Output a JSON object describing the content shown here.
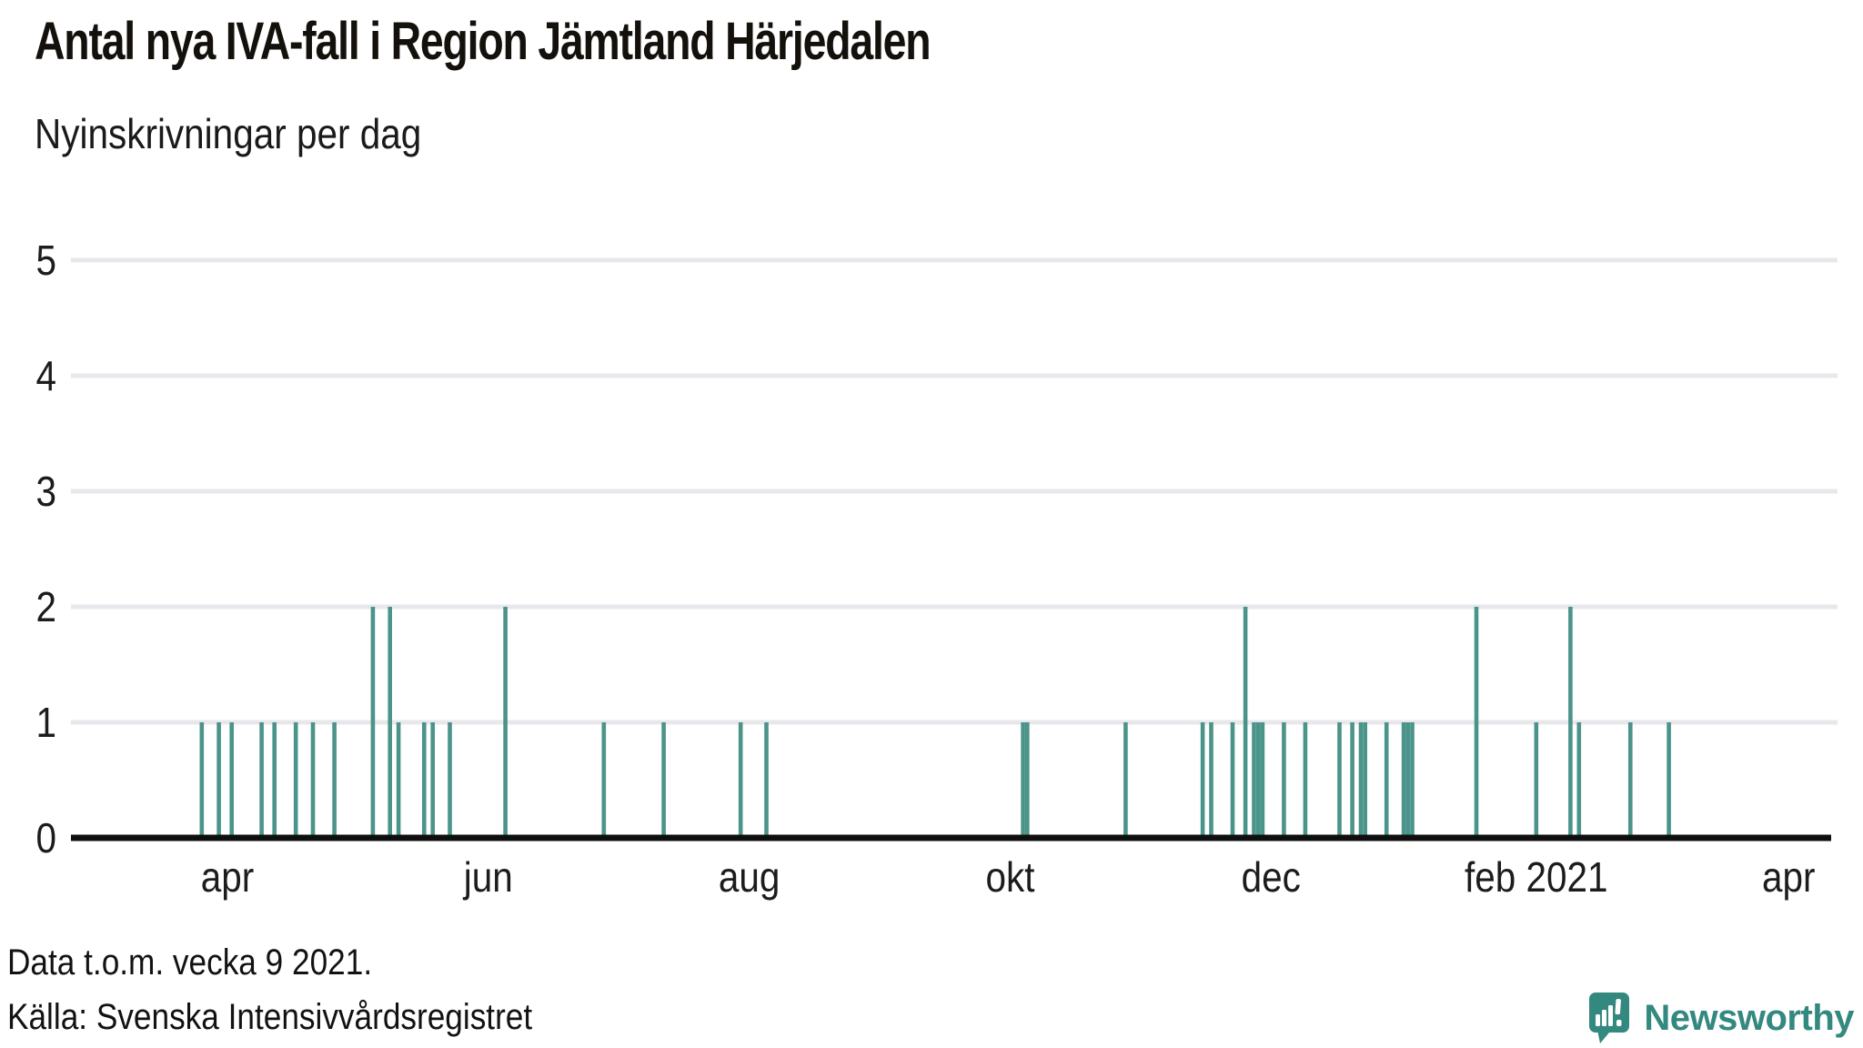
{
  "title": "Antal nya IVA-fall i Region Jämtland Härjedalen",
  "subtitle": "Nyinskrivningar per dag",
  "footer": {
    "note": "Data t.o.m. vecka 9 2021.",
    "source": "Källa: Svenska Intensivvårdsregistret"
  },
  "branding": {
    "name": "Newsworthy",
    "color": "#33897f"
  },
  "colors": {
    "bar": "#4a9489",
    "gridline": "#e8e8ec",
    "axis": "#0f0f0f",
    "tick_text": "#1c1c1c"
  },
  "chart_data": {
    "type": "bar",
    "title": "Antal nya IVA-fall i Region Jämtland Härjedalen",
    "subtitle": "Nyinskrivningar per dag",
    "xlabel": "",
    "ylabel": "Nyinskrivningar per dag",
    "ylim": [
      0,
      5
    ],
    "yticks": [
      0,
      1,
      2,
      3,
      4,
      5
    ],
    "grid": "horizontal",
    "legend": "none",
    "x_domain": [
      "2020-02-25",
      "2021-04-11"
    ],
    "xticks": [
      {
        "date": "2020-04-01",
        "label": "apr"
      },
      {
        "date": "2020-06-01",
        "label": "jun"
      },
      {
        "date": "2020-08-01",
        "label": "aug"
      },
      {
        "date": "2020-10-01",
        "label": "okt"
      },
      {
        "date": "2020-12-01",
        "label": "dec"
      },
      {
        "date": "2021-02-01",
        "label": "feb 2021"
      },
      {
        "date": "2021-04-01",
        "label": "apr"
      }
    ],
    "points": [
      {
        "date": "2020-03-26",
        "value": 1
      },
      {
        "date": "2020-03-30",
        "value": 1
      },
      {
        "date": "2020-04-02",
        "value": 1
      },
      {
        "date": "2020-04-09",
        "value": 1
      },
      {
        "date": "2020-04-12",
        "value": 1
      },
      {
        "date": "2020-04-17",
        "value": 1
      },
      {
        "date": "2020-04-21",
        "value": 1
      },
      {
        "date": "2020-04-26",
        "value": 1
      },
      {
        "date": "2020-05-05",
        "value": 2
      },
      {
        "date": "2020-05-09",
        "value": 2
      },
      {
        "date": "2020-05-11",
        "value": 1
      },
      {
        "date": "2020-05-17",
        "value": 1
      },
      {
        "date": "2020-05-19",
        "value": 1
      },
      {
        "date": "2020-05-23",
        "value": 1
      },
      {
        "date": "2020-06-05",
        "value": 2
      },
      {
        "date": "2020-06-28",
        "value": 1
      },
      {
        "date": "2020-07-12",
        "value": 1
      },
      {
        "date": "2020-07-30",
        "value": 1
      },
      {
        "date": "2020-08-05",
        "value": 1
      },
      {
        "date": "2020-10-04",
        "value": 1
      },
      {
        "date": "2020-10-05",
        "value": 1
      },
      {
        "date": "2020-10-28",
        "value": 1
      },
      {
        "date": "2020-11-15",
        "value": 1
      },
      {
        "date": "2020-11-17",
        "value": 1
      },
      {
        "date": "2020-11-22",
        "value": 1
      },
      {
        "date": "2020-11-25",
        "value": 2
      },
      {
        "date": "2020-11-27",
        "value": 1
      },
      {
        "date": "2020-11-28",
        "value": 1
      },
      {
        "date": "2020-11-29",
        "value": 1
      },
      {
        "date": "2020-12-04",
        "value": 1
      },
      {
        "date": "2020-12-09",
        "value": 1
      },
      {
        "date": "2020-12-17",
        "value": 1
      },
      {
        "date": "2020-12-20",
        "value": 1
      },
      {
        "date": "2020-12-22",
        "value": 1
      },
      {
        "date": "2020-12-23",
        "value": 1
      },
      {
        "date": "2020-12-28",
        "value": 1
      },
      {
        "date": "2021-01-01",
        "value": 1
      },
      {
        "date": "2021-01-02",
        "value": 1
      },
      {
        "date": "2021-01-03",
        "value": 1
      },
      {
        "date": "2021-01-18",
        "value": 2
      },
      {
        "date": "2021-02-01",
        "value": 1
      },
      {
        "date": "2021-02-09",
        "value": 2
      },
      {
        "date": "2021-02-11",
        "value": 1
      },
      {
        "date": "2021-02-23",
        "value": 1
      },
      {
        "date": "2021-03-04",
        "value": 1
      }
    ]
  }
}
